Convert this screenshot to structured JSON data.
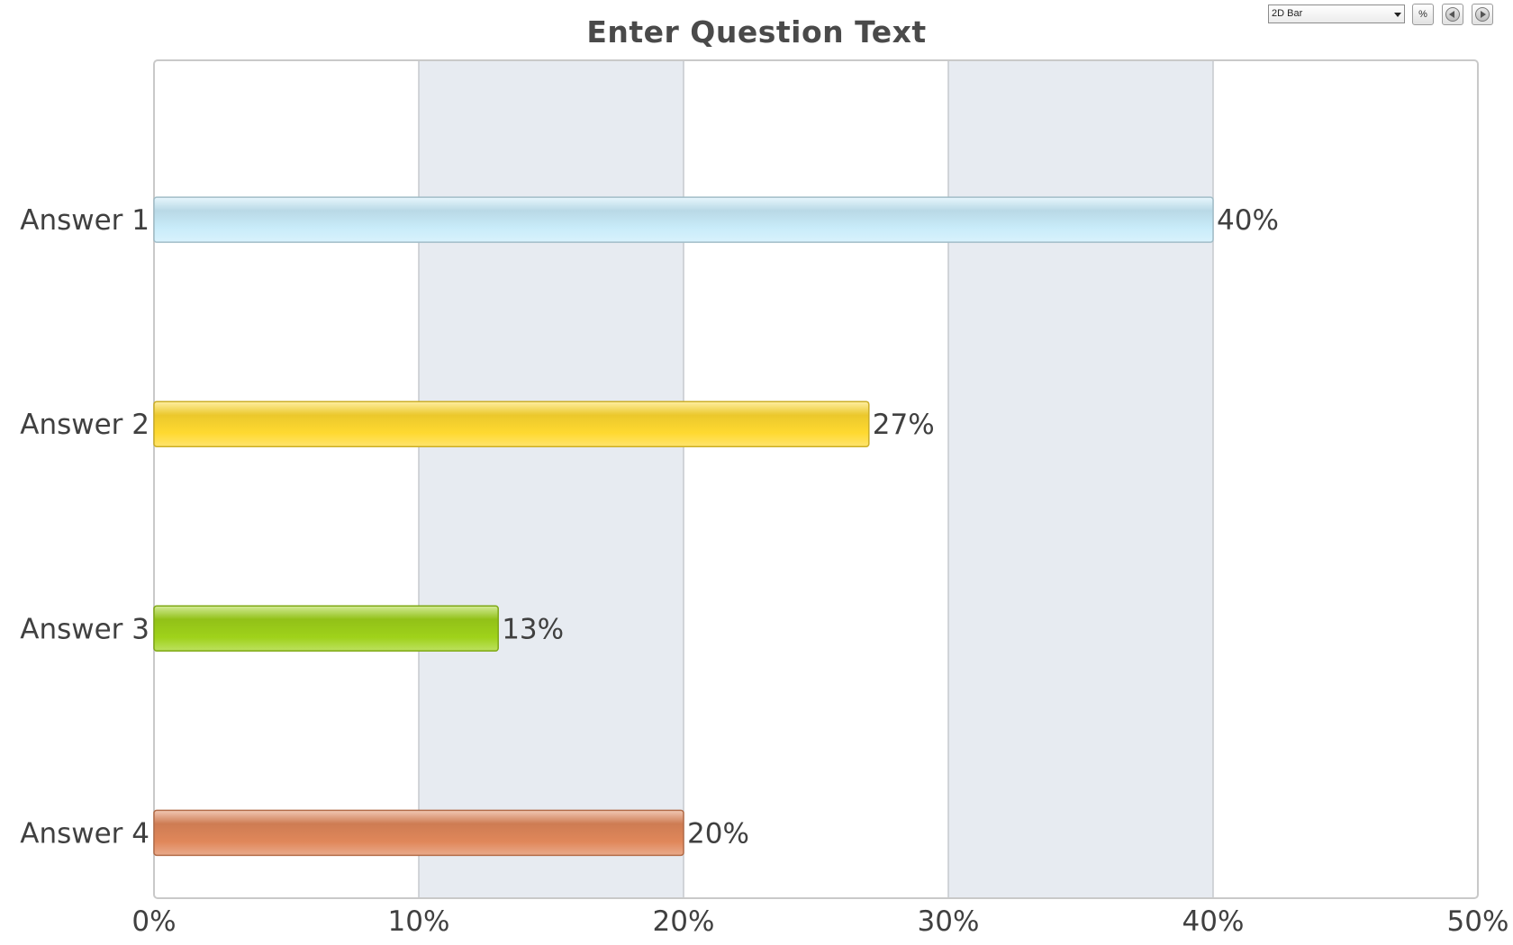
{
  "toolbar": {
    "chart_type_value": "2D Bar",
    "percent_label": "%",
    "prev_icon": "arrow-left-circle-icon",
    "next_icon": "arrow-right-circle-icon"
  },
  "chart_data": {
    "type": "bar",
    "orientation": "horizontal",
    "title": "Enter Question Text",
    "xlabel": "",
    "ylabel": "",
    "categories": [
      "Answer 1",
      "Answer 2",
      "Answer 3",
      "Answer 4"
    ],
    "values": [
      40,
      27,
      13,
      20
    ],
    "data_labels": [
      "40%",
      "27%",
      "13%",
      "20%"
    ],
    "bar_colors": [
      "#c9ecfa",
      "#ffd930",
      "#9fd21a",
      "#e0875a"
    ],
    "xlim": [
      0,
      50
    ],
    "x_ticks": [
      0,
      10,
      20,
      30,
      40,
      50
    ],
    "x_tick_labels": [
      "0%",
      "10%",
      "20%",
      "30%",
      "40%",
      "50%"
    ],
    "grid": true,
    "alternating_band_color": "#e7ebf1",
    "legend": "none"
  }
}
